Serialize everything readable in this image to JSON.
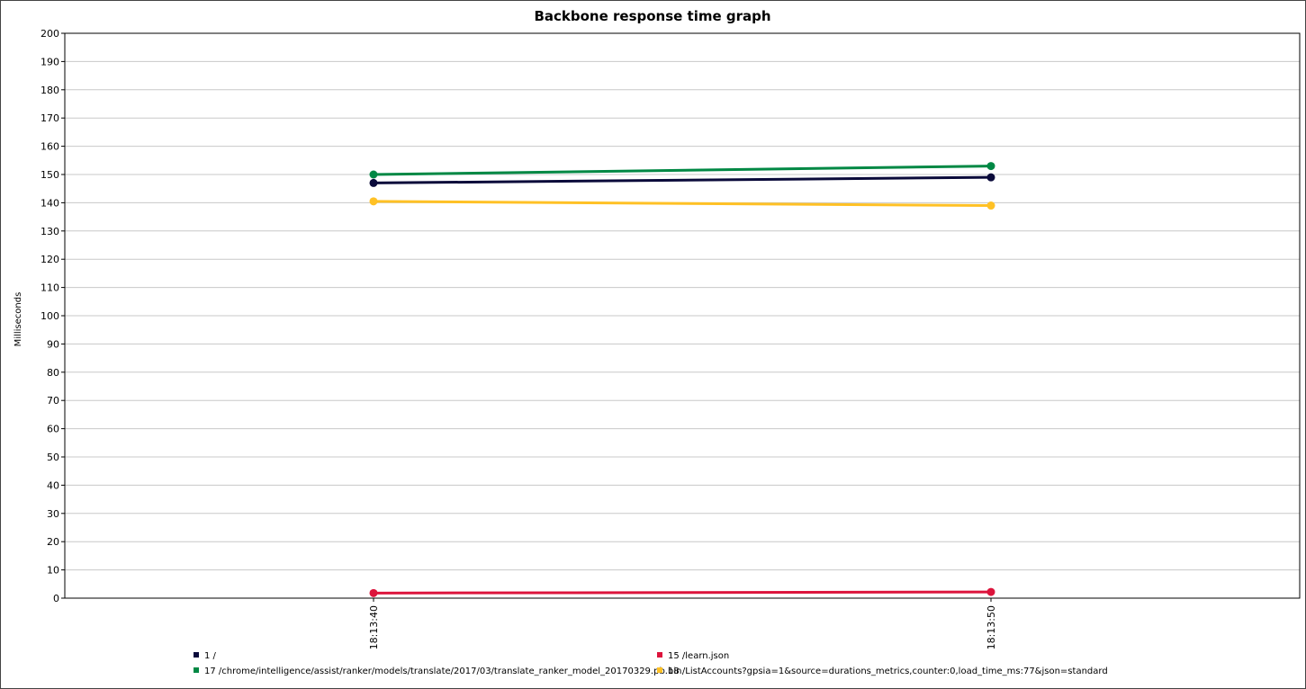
{
  "chart_data": {
    "type": "line",
    "title": "Backbone response time graph",
    "xlabel": "",
    "ylabel": "Milliseconds",
    "ylim": [
      0,
      200
    ],
    "y_ticks": [
      0,
      10,
      20,
      30,
      40,
      50,
      60,
      70,
      80,
      90,
      100,
      110,
      120,
      130,
      140,
      150,
      160,
      170,
      180,
      190,
      200
    ],
    "x": [
      "18:13:40",
      "18:13:50"
    ],
    "grid": true,
    "legend_position": "bottom",
    "series": [
      {
        "name": "1 /",
        "color": "#0a0a3a",
        "values": [
          147,
          149
        ]
      },
      {
        "name": "15 /learn.json",
        "color": "#dc143c",
        "values": [
          1.8,
          2.2
        ]
      },
      {
        "name": "17 /chrome/intelligence/assist/ranker/models/translate/2017/03/translate_ranker_model_20170329.pb.bin",
        "color": "#008844",
        "values": [
          150,
          153
        ]
      },
      {
        "name": "18 /ListAccounts?gpsia=1&source=durations_metrics,counter:0,load_time_ms:77&json=standard",
        "color": "#ffc125",
        "values": [
          140.5,
          139
        ]
      }
    ]
  }
}
